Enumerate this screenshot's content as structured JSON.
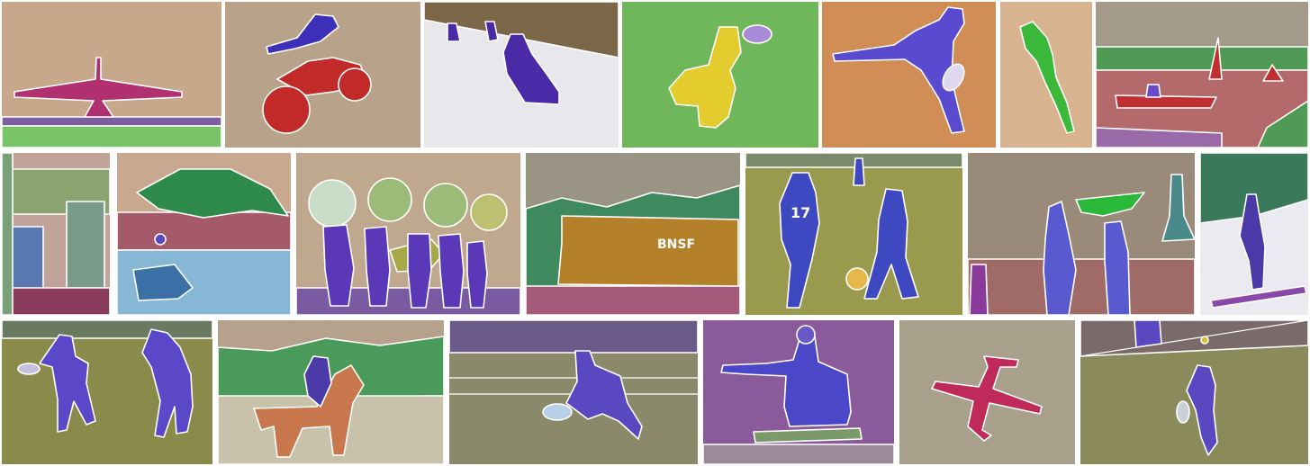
{
  "mosaic": {
    "rows": [
      {
        "tiles": [
          {
            "id": "airplane-runway",
            "segments": [
              "sky",
              "airplane",
              "runway",
              "grass"
            ],
            "colors": {
              "sky": "#c7a88b",
              "airplane": "#b03070",
              "runway": "#7a5ea0",
              "grass": "#78c466"
            }
          },
          {
            "id": "motocross",
            "segments": [
              "sky",
              "person",
              "motorcycle"
            ],
            "colors": {
              "sky": "#b8a38a",
              "person": "#3c30b8",
              "motorcycle": "#c22a2a"
            }
          },
          {
            "id": "skiers",
            "segments": [
              "trees",
              "snow",
              "person"
            ],
            "colors": {
              "trees": "#7b6648",
              "snow": "#e8e8ec",
              "person": "#4a2aa6"
            }
          },
          {
            "id": "dog-frisbee",
            "segments": [
              "grass",
              "dog",
              "frisbee"
            ],
            "colors": {
              "grass": "#6fb75a",
              "dog": "#e3cc2e",
              "frisbee": "#a98ad6"
            }
          },
          {
            "id": "tennis-woman",
            "segments": [
              "court",
              "person",
              "racket"
            ],
            "colors": {
              "court": "#d08d55",
              "person": "#5a4ad0",
              "racket": "#e0d8f0"
            }
          },
          {
            "id": "kite",
            "segments": [
              "sky",
              "kite"
            ],
            "colors": {
              "sky": "#d7b48f",
              "kite": "#3ab83a"
            }
          },
          {
            "id": "boat-harbor",
            "segments": [
              "trees",
              "water",
              "boat",
              "person"
            ],
            "colors": {
              "trees": "#4f9a55",
              "water": "#b46a6a",
              "boat": "#c03030",
              "person": "#6a48c8"
            }
          }
        ]
      },
      {
        "tiles": [
          {
            "id": "kitchen",
            "segments": [
              "cabinet",
              "wall",
              "refrigerator",
              "floor"
            ],
            "colors": {
              "cabinet": "#8aa370",
              "wall": "#c2a39a",
              "refrigerator": "#7a9a8a",
              "floor": "#8a3a5a"
            }
          },
          {
            "id": "umbrella-beach",
            "segments": [
              "umbrella",
              "sea",
              "chair",
              "person"
            ],
            "colors": {
              "umbrella": "#2e8a4a",
              "sea": "#86b8d6",
              "chair": "#3a70a6",
              "person": "#5a48c0"
            }
          },
          {
            "id": "umbrella-group",
            "segments": [
              "umbrella",
              "person",
              "grass"
            ],
            "colors": {
              "umbrella": "#9dbb78",
              "person": "#5a38b8",
              "grass": "#7a5aa0"
            }
          },
          {
            "id": "train",
            "segments": [
              "trees",
              "train",
              "gravel"
            ],
            "colors": {
              "trees": "#3e8a5e",
              "train": "#b4802a",
              "gravel": "#a55a7a"
            }
          },
          {
            "id": "soccer",
            "segments": [
              "field",
              "person",
              "ball"
            ],
            "colors": {
              "field": "#9a9a4e",
              "person": "#3e48c0",
              "ball": "#e6b84a"
            }
          },
          {
            "id": "kite-flyers",
            "segments": [
              "sky",
              "person",
              "kite",
              "tower"
            ],
            "colors": {
              "sky": "#9a8a7a",
              "person": "#5a5ad0",
              "kite": "#2ab83a",
              "tower": "#4a8a8a"
            }
          },
          {
            "id": "snowboarder",
            "segments": [
              "trees",
              "snow",
              "person",
              "board"
            ],
            "colors": {
              "trees": "#3a7a5a",
              "snow": "#eaeaf0",
              "person": "#4a3aa8",
              "board": "#8a48a8"
            }
          }
        ]
      },
      {
        "tiles": [
          {
            "id": "frisbee-players",
            "segments": [
              "grass",
              "person",
              "frisbee"
            ],
            "colors": {
              "grass": "#8a8a4a",
              "person": "#5a48c8",
              "frisbee": "#c8c0e0"
            }
          },
          {
            "id": "horse-rider",
            "segments": [
              "trees",
              "horse",
              "person",
              "ground"
            ],
            "colors": {
              "trees": "#4a9a5a",
              "horse": "#c9784e",
              "person": "#4a3aa8",
              "ground": "#c8c2aa"
            }
          },
          {
            "id": "tennis-man",
            "segments": [
              "court",
              "person",
              "racket",
              "bags"
            ],
            "colors": {
              "court": "#8a8a6a",
              "person": "#5a48c0",
              "racket": "#b8d0e8",
              "bags": "#6a5a8a"
            }
          },
          {
            "id": "skateboarder",
            "segments": [
              "wall",
              "person",
              "skateboard"
            ],
            "colors": {
              "wall": "#8a5a9a",
              "person": "#4a48c8",
              "skateboard": "#7a9a6a"
            }
          },
          {
            "id": "airplane-sky",
            "segments": [
              "sky",
              "airplane"
            ],
            "colors": {
              "sky": "#a8a08a",
              "airplane": "#c02a5a"
            }
          },
          {
            "id": "tennis-girl",
            "segments": [
              "court",
              "person",
              "racket",
              "ball"
            ],
            "colors": {
              "court": "#8a8a5a",
              "person": "#5a48c0",
              "racket": "#c8d0d8",
              "ball": "#d8c02a"
            }
          }
        ]
      }
    ]
  },
  "caption_texts": {
    "soccer_jersey": "17",
    "train_logo": "BNSF"
  }
}
